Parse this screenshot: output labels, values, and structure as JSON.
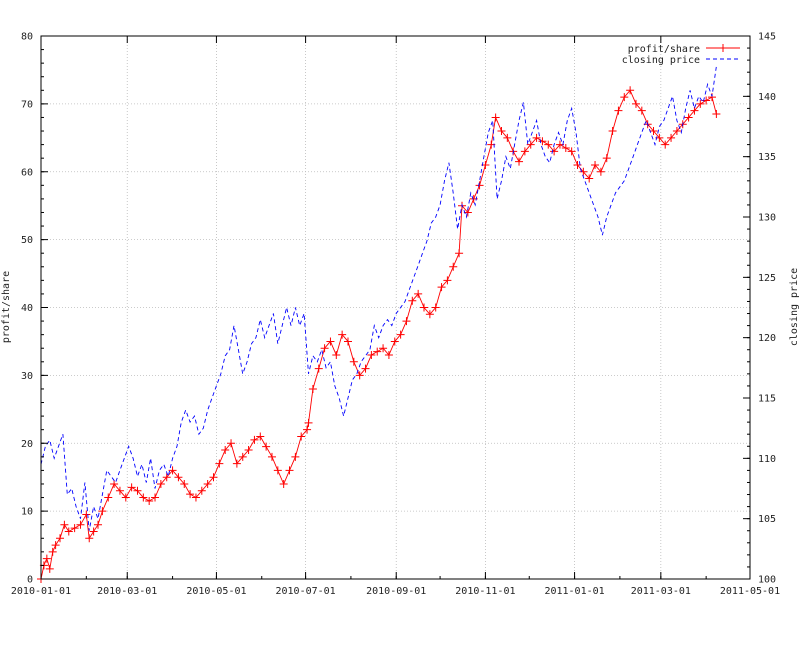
{
  "chart_data": {
    "type": "line",
    "x_axis": {
      "type": "date",
      "range": [
        "2010-01-01",
        "2011-05-01"
      ],
      "ticks": [
        "2010-01-01",
        "2010-03-01",
        "2010-05-01",
        "2010-07-01",
        "2010-09-01",
        "2010-11-01",
        "2011-01-01",
        "2011-03-01",
        "2011-05-01"
      ]
    },
    "y_axis_left": {
      "label": "profit/share",
      "range": [
        0,
        80
      ],
      "ticks": [
        0,
        10,
        20,
        30,
        40,
        50,
        60,
        70,
        80
      ]
    },
    "y_axis_right": {
      "label": "closing price",
      "range": [
        100,
        145
      ],
      "ticks": [
        100,
        105,
        110,
        115,
        120,
        125,
        130,
        135,
        140,
        145
      ]
    },
    "grid": true,
    "legend_position": "top-right",
    "series": [
      {
        "name": "profit/share",
        "axis": "left",
        "color": "#ff0000",
        "style": "solid-with-plus-markers",
        "points": [
          [
            "2010-01-01",
            0
          ],
          [
            "2010-01-03",
            2
          ],
          [
            "2010-01-05",
            3
          ],
          [
            "2010-01-07",
            1.5
          ],
          [
            "2010-01-09",
            4
          ],
          [
            "2010-01-11",
            5
          ],
          [
            "2010-01-14",
            6
          ],
          [
            "2010-01-17",
            8
          ],
          [
            "2010-01-20",
            7
          ],
          [
            "2010-01-24",
            7.5
          ],
          [
            "2010-01-28",
            8
          ],
          [
            "2010-02-01",
            9.5
          ],
          [
            "2010-02-03",
            6
          ],
          [
            "2010-02-06",
            7
          ],
          [
            "2010-02-09",
            8
          ],
          [
            "2010-02-12",
            10
          ],
          [
            "2010-02-16",
            12
          ],
          [
            "2010-02-20",
            14
          ],
          [
            "2010-02-24",
            13
          ],
          [
            "2010-02-28",
            12
          ],
          [
            "2010-03-04",
            13.5
          ],
          [
            "2010-03-08",
            13
          ],
          [
            "2010-03-12",
            12
          ],
          [
            "2010-03-16",
            11.5
          ],
          [
            "2010-03-20",
            12
          ],
          [
            "2010-03-24",
            14
          ],
          [
            "2010-03-28",
            15
          ],
          [
            "2010-04-01",
            16
          ],
          [
            "2010-04-05",
            15
          ],
          [
            "2010-04-09",
            14
          ],
          [
            "2010-04-13",
            12.5
          ],
          [
            "2010-04-17",
            12
          ],
          [
            "2010-04-21",
            13
          ],
          [
            "2010-04-25",
            14
          ],
          [
            "2010-04-29",
            15
          ],
          [
            "2010-05-03",
            17
          ],
          [
            "2010-05-07",
            19
          ],
          [
            "2010-05-11",
            20
          ],
          [
            "2010-05-15",
            17
          ],
          [
            "2010-05-19",
            18
          ],
          [
            "2010-05-23",
            19
          ],
          [
            "2010-05-27",
            20.5
          ],
          [
            "2010-05-31",
            21
          ],
          [
            "2010-06-04",
            19.5
          ],
          [
            "2010-06-08",
            18
          ],
          [
            "2010-06-12",
            16
          ],
          [
            "2010-06-16",
            14
          ],
          [
            "2010-06-20",
            16
          ],
          [
            "2010-06-24",
            18
          ],
          [
            "2010-06-28",
            21
          ],
          [
            "2010-07-02",
            22
          ],
          [
            "2010-07-03",
            23
          ],
          [
            "2010-07-06",
            28
          ],
          [
            "2010-07-10",
            31
          ],
          [
            "2010-07-14",
            34
          ],
          [
            "2010-07-18",
            35
          ],
          [
            "2010-07-22",
            33
          ],
          [
            "2010-07-26",
            36
          ],
          [
            "2010-07-30",
            35
          ],
          [
            "2010-08-03",
            32
          ],
          [
            "2010-08-07",
            30
          ],
          [
            "2010-08-11",
            31
          ],
          [
            "2010-08-15",
            33
          ],
          [
            "2010-08-19",
            33.5
          ],
          [
            "2010-08-23",
            34
          ],
          [
            "2010-08-27",
            33
          ],
          [
            "2010-08-31",
            35
          ],
          [
            "2010-09-04",
            36
          ],
          [
            "2010-09-08",
            38
          ],
          [
            "2010-09-12",
            41
          ],
          [
            "2010-09-16",
            42
          ],
          [
            "2010-09-20",
            40
          ],
          [
            "2010-09-24",
            39
          ],
          [
            "2010-09-28",
            40
          ],
          [
            "2010-10-02",
            43
          ],
          [
            "2010-10-06",
            44
          ],
          [
            "2010-10-10",
            46
          ],
          [
            "2010-10-14",
            48
          ],
          [
            "2010-10-16",
            55
          ],
          [
            "2010-10-20",
            54
          ],
          [
            "2010-10-24",
            56
          ],
          [
            "2010-10-28",
            58
          ],
          [
            "2010-11-01",
            61
          ],
          [
            "2010-11-05",
            64
          ],
          [
            "2010-11-08",
            68
          ],
          [
            "2010-11-12",
            66
          ],
          [
            "2010-11-16",
            65
          ],
          [
            "2010-11-20",
            63
          ],
          [
            "2010-11-24",
            61.5
          ],
          [
            "2010-11-28",
            63
          ],
          [
            "2010-12-02",
            64
          ],
          [
            "2010-12-06",
            65
          ],
          [
            "2010-12-10",
            64.5
          ],
          [
            "2010-12-14",
            64
          ],
          [
            "2010-12-18",
            63
          ],
          [
            "2010-12-22",
            64
          ],
          [
            "2010-12-26",
            63.5
          ],
          [
            "2010-12-30",
            63
          ],
          [
            "2011-01-03",
            61
          ],
          [
            "2011-01-07",
            60
          ],
          [
            "2011-01-11",
            59
          ],
          [
            "2011-01-15",
            61
          ],
          [
            "2011-01-19",
            60
          ],
          [
            "2011-01-23",
            62
          ],
          [
            "2011-01-27",
            66
          ],
          [
            "2011-01-31",
            69
          ],
          [
            "2011-02-04",
            71
          ],
          [
            "2011-02-08",
            72
          ],
          [
            "2011-02-12",
            70
          ],
          [
            "2011-02-16",
            69
          ],
          [
            "2011-02-20",
            67
          ],
          [
            "2011-02-24",
            66
          ],
          [
            "2011-02-28",
            65
          ],
          [
            "2011-03-04",
            64
          ],
          [
            "2011-03-08",
            65
          ],
          [
            "2011-03-12",
            66
          ],
          [
            "2011-03-16",
            67
          ],
          [
            "2011-03-20",
            68
          ],
          [
            "2011-03-24",
            69
          ],
          [
            "2011-03-28",
            70
          ],
          [
            "2011-04-01",
            70.5
          ],
          [
            "2011-04-05",
            71
          ],
          [
            "2011-04-08",
            68.5
          ]
        ]
      },
      {
        "name": "closing price",
        "axis": "right",
        "color": "#0000ff",
        "style": "dashed",
        "points": [
          [
            "2010-01-01",
            109.5
          ],
          [
            "2010-01-04",
            111
          ],
          [
            "2010-01-07",
            111.5
          ],
          [
            "2010-01-10",
            110
          ],
          [
            "2010-01-13",
            111
          ],
          [
            "2010-01-16",
            112
          ],
          [
            "2010-01-19",
            107
          ],
          [
            "2010-01-22",
            107.5
          ],
          [
            "2010-01-25",
            106
          ],
          [
            "2010-01-28",
            105
          ],
          [
            "2010-01-31",
            108
          ],
          [
            "2010-02-03",
            104
          ],
          [
            "2010-02-06",
            106
          ],
          [
            "2010-02-09",
            105
          ],
          [
            "2010-02-12",
            107
          ],
          [
            "2010-02-15",
            109
          ],
          [
            "2010-02-18",
            108.5
          ],
          [
            "2010-02-21",
            108
          ],
          [
            "2010-02-24",
            109
          ],
          [
            "2010-02-27",
            110
          ],
          [
            "2010-03-02",
            111
          ],
          [
            "2010-03-05",
            110
          ],
          [
            "2010-03-08",
            108.5
          ],
          [
            "2010-03-11",
            109.5
          ],
          [
            "2010-03-14",
            108
          ],
          [
            "2010-03-17",
            110
          ],
          [
            "2010-03-20",
            107.5
          ],
          [
            "2010-03-23",
            109
          ],
          [
            "2010-03-26",
            109.5
          ],
          [
            "2010-03-29",
            108.5
          ],
          [
            "2010-04-01",
            110
          ],
          [
            "2010-04-04",
            111
          ],
          [
            "2010-04-07",
            113
          ],
          [
            "2010-04-10",
            114
          ],
          [
            "2010-04-13",
            113
          ],
          [
            "2010-04-16",
            113.5
          ],
          [
            "2010-04-19",
            112
          ],
          [
            "2010-04-22",
            112.5
          ],
          [
            "2010-04-25",
            114
          ],
          [
            "2010-04-28",
            115
          ],
          [
            "2010-05-01",
            116
          ],
          [
            "2010-05-04",
            117
          ],
          [
            "2010-05-07",
            118.5
          ],
          [
            "2010-05-10",
            119
          ],
          [
            "2010-05-13",
            121
          ],
          [
            "2010-05-16",
            119
          ],
          [
            "2010-05-19",
            117
          ],
          [
            "2010-05-22",
            118
          ],
          [
            "2010-05-25",
            119.5
          ],
          [
            "2010-05-28",
            120
          ],
          [
            "2010-05-31",
            121.5
          ],
          [
            "2010-06-03",
            120
          ],
          [
            "2010-06-06",
            121
          ],
          [
            "2010-06-09",
            122
          ],
          [
            "2010-06-12",
            119.5
          ],
          [
            "2010-06-15",
            121
          ],
          [
            "2010-06-18",
            122.5
          ],
          [
            "2010-06-21",
            121
          ],
          [
            "2010-06-24",
            122.5
          ],
          [
            "2010-06-27",
            121
          ],
          [
            "2010-06-30",
            122
          ],
          [
            "2010-07-03",
            117
          ],
          [
            "2010-07-06",
            118.5
          ],
          [
            "2010-07-09",
            118
          ],
          [
            "2010-07-12",
            119
          ],
          [
            "2010-07-15",
            117.5
          ],
          [
            "2010-07-18",
            118
          ],
          [
            "2010-07-21",
            116
          ],
          [
            "2010-07-24",
            115
          ],
          [
            "2010-07-27",
            113.5
          ],
          [
            "2010-07-30",
            115
          ],
          [
            "2010-08-02",
            116.5
          ],
          [
            "2010-08-05",
            117
          ],
          [
            "2010-08-08",
            118
          ],
          [
            "2010-08-11",
            118.5
          ],
          [
            "2010-08-14",
            119
          ],
          [
            "2010-08-17",
            121
          ],
          [
            "2010-08-20",
            120
          ],
          [
            "2010-08-23",
            121
          ],
          [
            "2010-08-26",
            121.5
          ],
          [
            "2010-08-29",
            121
          ],
          [
            "2010-09-01",
            122
          ],
          [
            "2010-09-04",
            122.5
          ],
          [
            "2010-09-07",
            123
          ],
          [
            "2010-09-10",
            124
          ],
          [
            "2010-09-13",
            125
          ],
          [
            "2010-09-16",
            126
          ],
          [
            "2010-09-19",
            127
          ],
          [
            "2010-09-22",
            128
          ],
          [
            "2010-09-25",
            129.5
          ],
          [
            "2010-09-28",
            130
          ],
          [
            "2010-10-01",
            131
          ],
          [
            "2010-10-04",
            133
          ],
          [
            "2010-10-07",
            134.5
          ],
          [
            "2010-10-10",
            132
          ],
          [
            "2010-10-13",
            129
          ],
          [
            "2010-10-16",
            131
          ],
          [
            "2010-10-19",
            130
          ],
          [
            "2010-10-22",
            132
          ],
          [
            "2010-10-25",
            131
          ],
          [
            "2010-10-28",
            133
          ],
          [
            "2010-10-31",
            135
          ],
          [
            "2010-11-03",
            137
          ],
          [
            "2010-11-06",
            138
          ],
          [
            "2010-11-09",
            131.5
          ],
          [
            "2010-11-12",
            133
          ],
          [
            "2010-11-15",
            135
          ],
          [
            "2010-11-18",
            134
          ],
          [
            "2010-11-21",
            136
          ],
          [
            "2010-11-24",
            138
          ],
          [
            "2010-11-27",
            139.5
          ],
          [
            "2010-11-30",
            136
          ],
          [
            "2010-12-03",
            137
          ],
          [
            "2010-12-06",
            138
          ],
          [
            "2010-12-09",
            136
          ],
          [
            "2010-12-12",
            135
          ],
          [
            "2010-12-15",
            134.5
          ],
          [
            "2010-12-18",
            136
          ],
          [
            "2010-12-21",
            137
          ],
          [
            "2010-12-24",
            136
          ],
          [
            "2010-12-27",
            138
          ],
          [
            "2010-12-30",
            139
          ],
          [
            "2011-01-02",
            137
          ],
          [
            "2011-01-05",
            134
          ],
          [
            "2011-01-08",
            133
          ],
          [
            "2011-01-11",
            132
          ],
          [
            "2011-01-14",
            131
          ],
          [
            "2011-01-17",
            130
          ],
          [
            "2011-01-20",
            128.5
          ],
          [
            "2011-01-23",
            130
          ],
          [
            "2011-01-26",
            131
          ],
          [
            "2011-01-29",
            132
          ],
          [
            "2011-02-01",
            132.5
          ],
          [
            "2011-02-04",
            133
          ],
          [
            "2011-02-07",
            134
          ],
          [
            "2011-02-10",
            135
          ],
          [
            "2011-02-13",
            136
          ],
          [
            "2011-02-16",
            137
          ],
          [
            "2011-02-19",
            138
          ],
          [
            "2011-02-22",
            137
          ],
          [
            "2011-02-25",
            136
          ],
          [
            "2011-02-28",
            137.5
          ],
          [
            "2011-03-03",
            138
          ],
          [
            "2011-03-06",
            139
          ],
          [
            "2011-03-09",
            140
          ],
          [
            "2011-03-12",
            138
          ],
          [
            "2011-03-15",
            137
          ],
          [
            "2011-03-18",
            139
          ],
          [
            "2011-03-21",
            140.5
          ],
          [
            "2011-03-24",
            139
          ],
          [
            "2011-03-27",
            140
          ],
          [
            "2011-03-30",
            139.5
          ],
          [
            "2011-04-02",
            141
          ],
          [
            "2011-04-05",
            140
          ],
          [
            "2011-04-08",
            142.5
          ]
        ]
      }
    ]
  }
}
